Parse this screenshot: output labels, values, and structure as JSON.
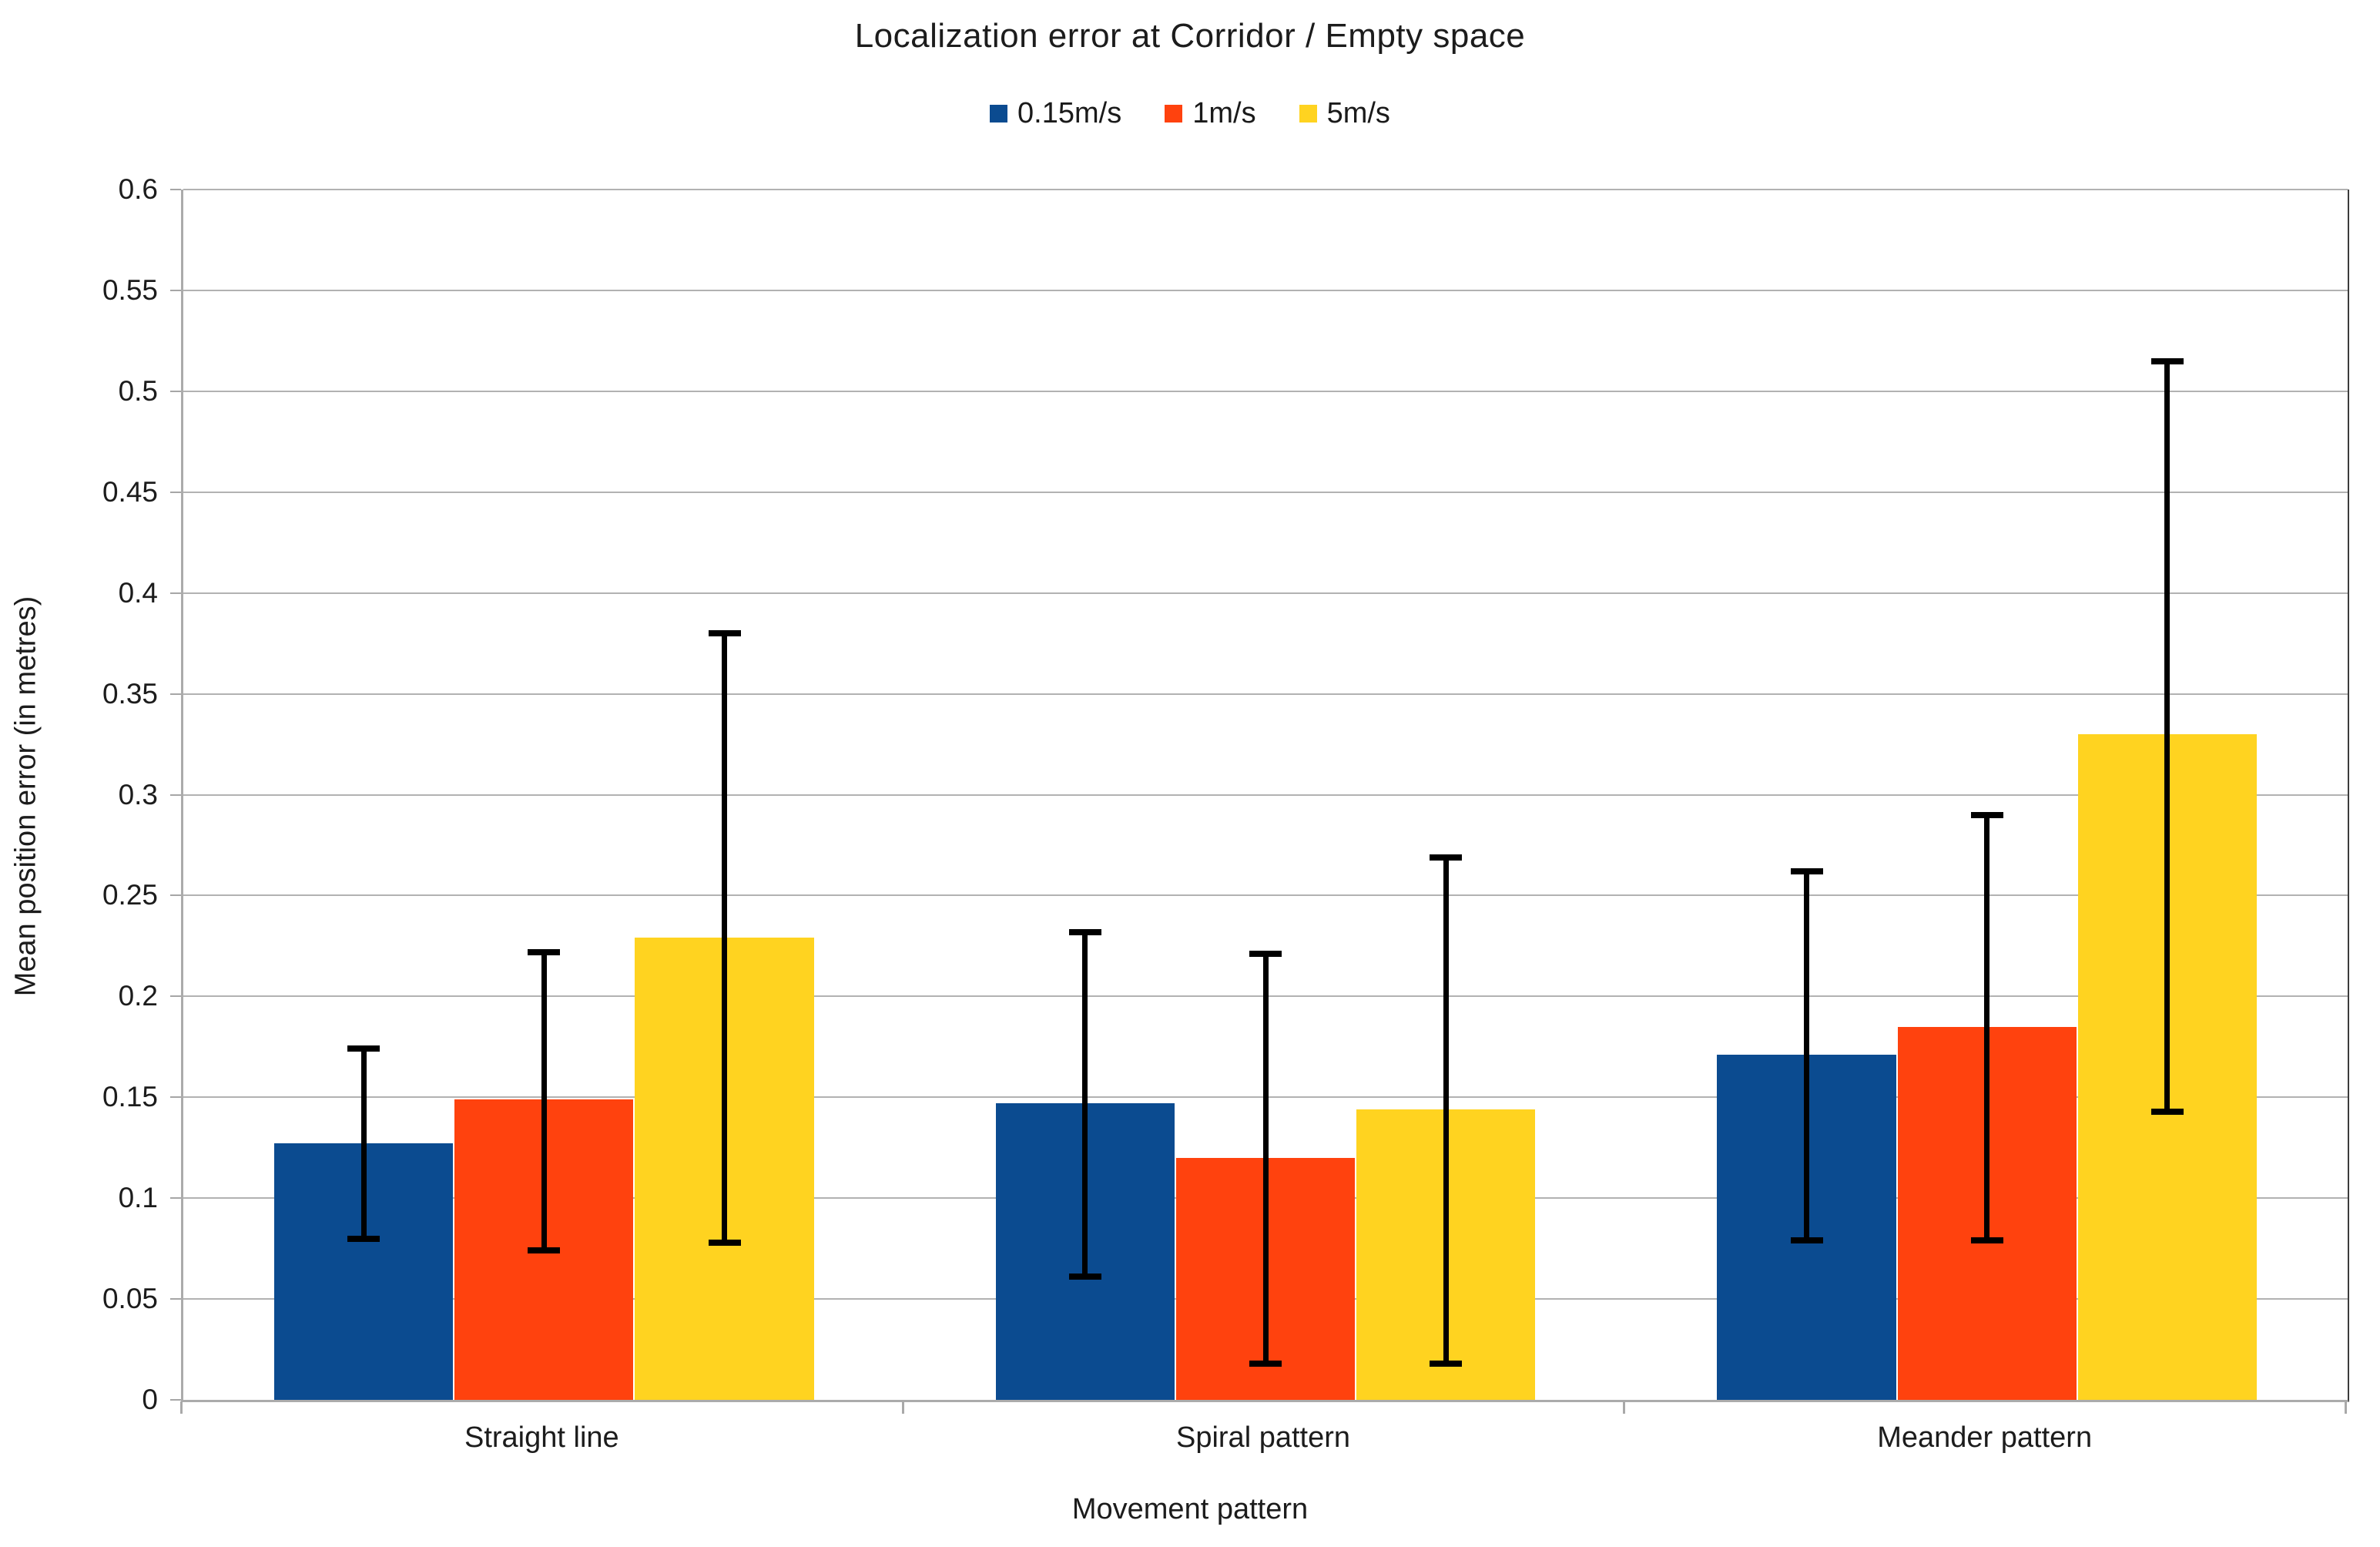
{
  "title": "Localization error at Corridor / Empty space",
  "legend": {
    "items": [
      {
        "label": "0.15m/s",
        "color": "#0b4b90"
      },
      {
        "label": "1m/s",
        "color": "#ff420e"
      },
      {
        "label": "5m/s",
        "color": "#ffd320"
      }
    ]
  },
  "axes": {
    "y_title": "Mean position error (in metres)",
    "x_title": "Movement pattern",
    "y_tick_labels": [
      "0",
      "0.05",
      "0.1",
      "0.15",
      "0.2",
      "0.25",
      "0.3",
      "0.35",
      "0.4",
      "0.45",
      "0.5",
      "0.55",
      "0.6"
    ]
  },
  "chart_data": {
    "type": "bar",
    "title": "Localization error at Corridor / Empty space",
    "xlabel": "Movement pattern",
    "ylabel": "Mean position error (in metres)",
    "categories": [
      "Straight line",
      "Spiral pattern",
      "Meander pattern"
    ],
    "series": [
      {
        "name": "0.15m/s",
        "color": "#0b4b90",
        "values": [
          0.127,
          0.147,
          0.171
        ],
        "error_low": [
          0.08,
          0.061,
          0.079
        ],
        "error_high": [
          0.174,
          0.232,
          0.262
        ]
      },
      {
        "name": "1m/s",
        "color": "#ff420e",
        "values": [
          0.149,
          0.12,
          0.185
        ],
        "error_low": [
          0.074,
          0.018,
          0.079
        ],
        "error_high": [
          0.222,
          0.221,
          0.29
        ]
      },
      {
        "name": "5m/s",
        "color": "#ffd320",
        "values": [
          0.229,
          0.144,
          0.33
        ],
        "error_low": [
          0.078,
          0.018,
          0.143
        ],
        "error_high": [
          0.38,
          0.269,
          0.515
        ]
      }
    ],
    "ylim": [
      0,
      0.6
    ],
    "y_step": 0.05,
    "grid": true,
    "legend_position": "top",
    "error_bars": true
  },
  "colors": {
    "gridline": "#b2b2b2",
    "axis": "#ababab",
    "plot_right_border": "#3c3c3c",
    "error_bar": "#000000",
    "text": "#1c1c1c",
    "background": "#ffffff"
  }
}
